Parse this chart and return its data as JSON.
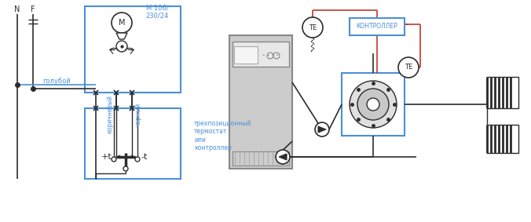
{
  "bg_color": "#ffffff",
  "blue": "#4a90d9",
  "red": "#c0392b",
  "dark": "#2c2c2c",
  "gray": "#888888",
  "mid_gray": "#aaaaaa",
  "light_gray": "#cccccc",
  "label_голубой": "голубой",
  "label_коричневый": "коричневый",
  "label_черный": "черный",
  "label_motor": "М 106/\n230/24",
  "label_N": "N",
  "label_F": "F",
  "label_thermostat": "трехпозиционный\nтермостат\nили\nконтроллер",
  "label_controller": "КОНТРОЛЛЕР",
  "label_TE": "ТЕ",
  "label_plus_t": "+t",
  "label_minus_t": "-t",
  "label_M": "М"
}
